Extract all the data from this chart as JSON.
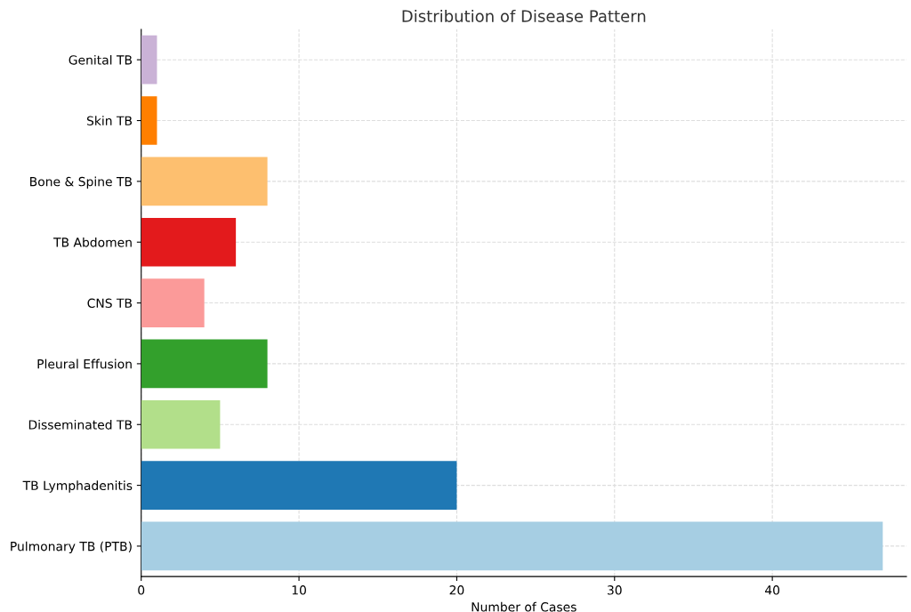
{
  "chart_data": {
    "type": "bar",
    "orientation": "horizontal",
    "title": "Distribution of Disease Pattern",
    "xlabel": "Number of Cases",
    "categories": [
      "Genital TB",
      "Skin TB",
      "Bone & Spine TB",
      "TB Abdomen",
      "CNS TB",
      "Pleural Effusion",
      "Disseminated TB",
      "TB Lymphadenitis",
      "Pulmonary TB (PTB)"
    ],
    "values": [
      1,
      1,
      8,
      6,
      4,
      8,
      5,
      20,
      47
    ],
    "colors": [
      "#cab2d6",
      "#ff7f00",
      "#fdbf6f",
      "#e31a1c",
      "#fb9a99",
      "#33a02c",
      "#b2df8a",
      "#1f78b4",
      "#a6cee3"
    ],
    "xlim": [
      0,
      48.5
    ],
    "xticks": [
      0,
      10,
      20,
      30,
      40
    ],
    "grid": true
  }
}
